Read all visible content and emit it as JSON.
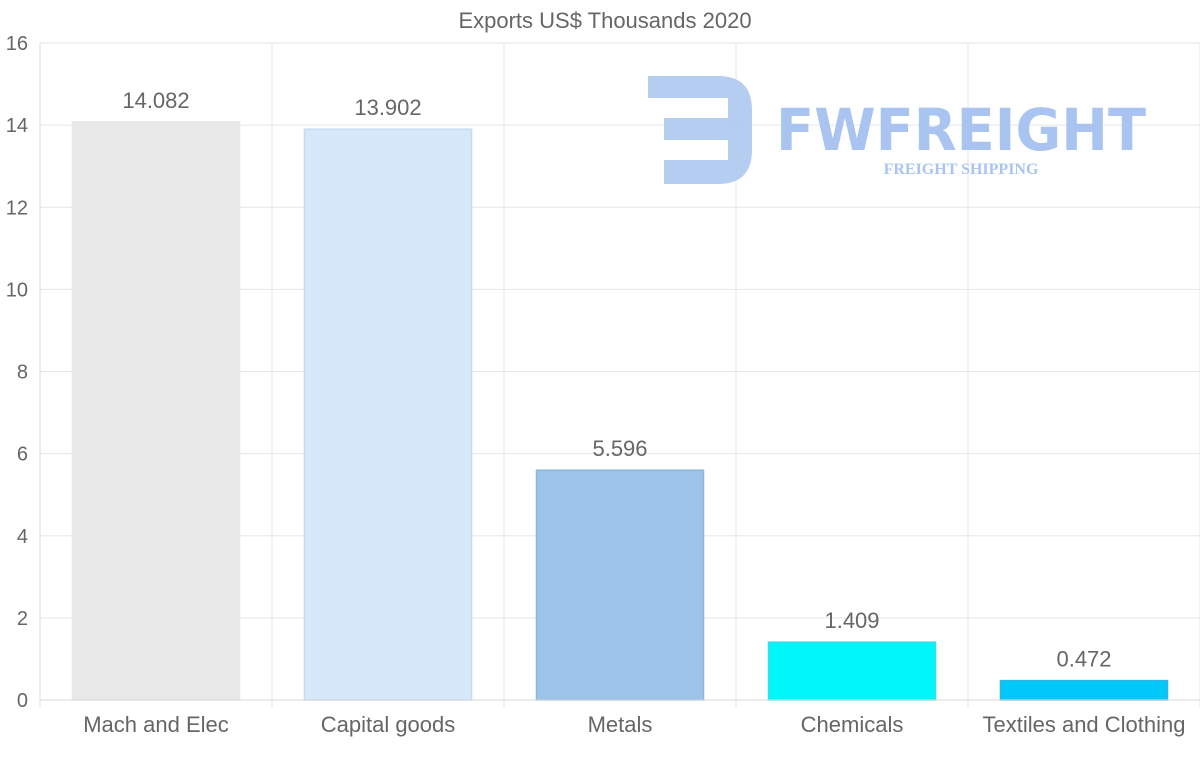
{
  "chart_data": {
    "type": "bar",
    "title": "Exports US$ Thousands 2020",
    "categories": [
      "Mach and Elec",
      "Capital goods",
      "Metals",
      "Chemicals",
      "Textiles and Clothing"
    ],
    "values": [
      14.082,
      13.902,
      5.596,
      1.409,
      0.472
    ],
    "value_labels": [
      "14.082",
      "13.902",
      "5.596",
      "1.409",
      "0.472"
    ],
    "colors": [
      "#e8e8e8",
      "#d6e8f9",
      "#9cc4e8",
      "#00f6f8",
      "#00c9f9"
    ],
    "border_colors": [
      "#e8e8e8",
      "#c5dcf5",
      "#8ab6e0",
      "#3fd9e6",
      "#2fb5e6"
    ],
    "ylim": [
      0,
      16
    ],
    "yticks": [
      0,
      2,
      4,
      6,
      8,
      10,
      12,
      14,
      16
    ],
    "xlabel": "",
    "ylabel": "",
    "grid": true,
    "legend": "none"
  },
  "watermark": {
    "brand": "FWFREIGHT",
    "tagline": "FREIGHT SHIPPING",
    "color": "#a9c4f0"
  }
}
